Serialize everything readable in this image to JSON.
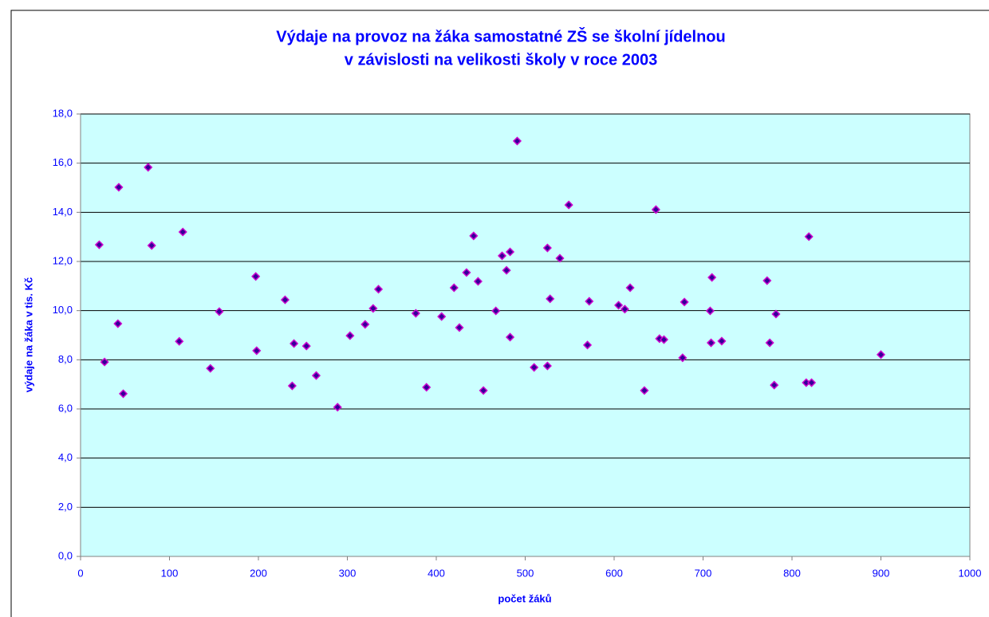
{
  "chart_data": {
    "type": "scatter",
    "title": [
      "Výdaje na provoz na žáka samostatné ZŠ se školní jídelnou",
      "v závislosti na velikosti školy v roce 2003"
    ],
    "x_label": "počet žáků",
    "y_label": "výdaje na žáka v tis. Kč",
    "xlim": [
      0,
      1000
    ],
    "xticks": [
      0,
      100,
      200,
      300,
      400,
      500,
      600,
      700,
      800,
      900,
      1000
    ],
    "ylim": [
      0,
      18
    ],
    "yticks": [
      {
        "value": 0,
        "label": "0,0"
      },
      {
        "value": 2,
        "label": "2,0"
      },
      {
        "value": 4,
        "label": "4,0"
      },
      {
        "value": 6,
        "label": "6,0"
      },
      {
        "value": 8,
        "label": "8,0"
      },
      {
        "value": 10,
        "label": "10,0"
      },
      {
        "value": 12,
        "label": "12,0"
      },
      {
        "value": 14,
        "label": "14,0"
      },
      {
        "value": 16,
        "label": "16,0"
      },
      {
        "value": 18,
        "label": "18,0"
      }
    ],
    "grid": true,
    "background": "#ccffff",
    "series": [
      {
        "color": "#cc00cc",
        "x": [
          21,
          27,
          43,
          42,
          48,
          76,
          80,
          111,
          115,
          146,
          156,
          197,
          198,
          230,
          238,
          240,
          254,
          265,
          289,
          303,
          320,
          329,
          335,
          377,
          389,
          406,
          420,
          426,
          434,
          442,
          447,
          453,
          467,
          474,
          479,
          483,
          483,
          491,
          510,
          525,
          525,
          528,
          539,
          549,
          570,
          572,
          605,
          612,
          618,
          634,
          647,
          651,
          656,
          677,
          679,
          708,
          709,
          710,
          721,
          772,
          775,
          780,
          782,
          819,
          816,
          822,
          900
        ],
        "values": [
          12.68,
          7.91,
          15.02,
          9.47,
          6.62,
          15.83,
          12.65,
          8.75,
          13.2,
          7.65,
          9.96,
          11.39,
          8.37,
          10.44,
          6.94,
          8.66,
          8.56,
          7.36,
          6.07,
          8.98,
          9.44,
          10.09,
          10.87,
          9.89,
          6.88,
          9.76,
          10.93,
          9.31,
          11.55,
          13.04,
          11.19,
          6.75,
          9.99,
          12.23,
          11.64,
          12.39,
          8.92,
          16.9,
          7.69,
          12.55,
          7.75,
          10.48,
          12.13,
          14.3,
          8.6,
          10.38,
          10.22,
          10.06,
          10.93,
          6.75,
          14.11,
          8.86,
          8.82,
          8.08,
          10.35,
          9.99,
          8.69,
          11.35,
          8.76,
          11.22,
          8.69,
          6.97,
          9.86,
          13.01,
          7.07,
          7.07,
          8.21
        ]
      }
    ]
  }
}
